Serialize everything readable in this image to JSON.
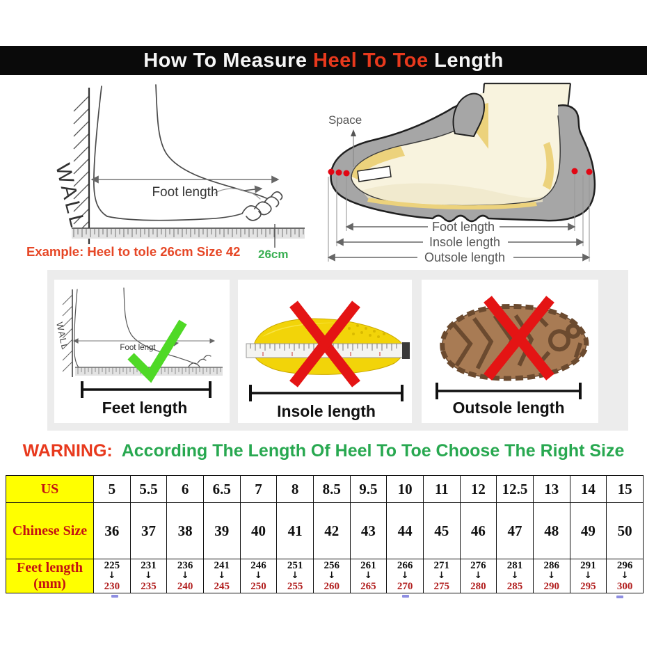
{
  "header": {
    "prefix": "How To Measure ",
    "highlight": "Heel To Toe",
    "suffix": " Length"
  },
  "measure_diagram": {
    "wall_label": "WALL",
    "foot_length_label": "Foot length",
    "ruler_value": "26cm",
    "example_text": "Example: Heel to tole 26cm Size 42"
  },
  "shoe_diagram": {
    "space_label": "Space",
    "foot_length_label": "Foot length",
    "insole_length_label": "Insole length",
    "outsole_length_label": "Outsole length"
  },
  "method_panels": {
    "feet": {
      "label": "Feet length",
      "wall_label": "WALL",
      "foot_length_label": "Foot lengt",
      "mark": "correct"
    },
    "insole": {
      "label": "Insole length",
      "mark": "wrong"
    },
    "outsole": {
      "label": "Outsole length",
      "mark": "wrong"
    }
  },
  "warning": {
    "label": "WARNING:",
    "text": "According The Length Of Heel To Toe Choose The Right Size"
  },
  "size_table": {
    "rows": [
      {
        "header": "US",
        "values": [
          "5",
          "5.5",
          "6",
          "6.5",
          "7",
          "8",
          "8.5",
          "9.5",
          "10",
          "11",
          "12",
          "12.5",
          "13",
          "14",
          "15"
        ]
      },
      {
        "header": "Chinese Size",
        "values": [
          "36",
          "37",
          "38",
          "39",
          "40",
          "41",
          "42",
          "43",
          "44",
          "45",
          "46",
          "47",
          "48",
          "49",
          "50"
        ]
      },
      {
        "header": "Feet length (mm)",
        "header_lines": [
          "Feet length",
          "(mm)"
        ],
        "values": [
          {
            "from": "225",
            "to": "230"
          },
          {
            "from": "231",
            "to": "235"
          },
          {
            "from": "236",
            "to": "240"
          },
          {
            "from": "241",
            "to": "245"
          },
          {
            "from": "246",
            "to": "250"
          },
          {
            "from": "251",
            "to": "255"
          },
          {
            "from": "256",
            "to": "260"
          },
          {
            "from": "261",
            "to": "265"
          },
          {
            "from": "266",
            "to": "270"
          },
          {
            "from": "271",
            "to": "275"
          },
          {
            "from": "276",
            "to": "280"
          },
          {
            "from": "281",
            "to": "285"
          },
          {
            "from": "286",
            "to": "290"
          },
          {
            "from": "291",
            "to": "295"
          },
          {
            "from": "296",
            "to": "300"
          }
        ]
      }
    ]
  },
  "colors": {
    "accent_red": "#e8391d",
    "warning_green": "#28a850",
    "ruler_green": "#3bb054",
    "table_yellow": "#ffff00",
    "table_header_red": "#c41111",
    "range_to_red": "#b22020",
    "check_green": "#4fd926",
    "cross_red": "#e41414",
    "shoe_gray": "#a6a6a6",
    "insole_yellow": "#f2d409",
    "outsole_brown": "#a87b54"
  }
}
